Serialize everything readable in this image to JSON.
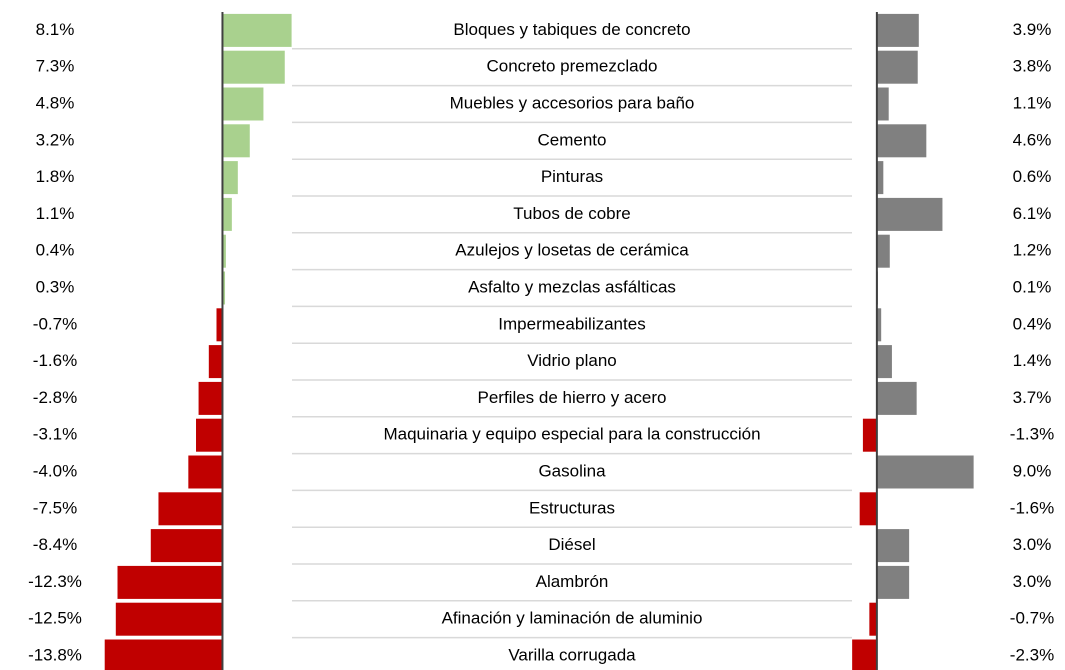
{
  "chart_data": {
    "type": "bar",
    "orientation": "horizontal",
    "categories": [
      "Bloques y tabiques de concreto",
      "Concreto premezclado",
      "Muebles y accesorios para baño",
      "Cemento",
      "Pinturas",
      "Tubos de cobre",
      "Azulejos y losetas de cerámica",
      "Asfalto y mezclas asfálticas",
      "Impermeabilizantes",
      "Vidrio plano",
      "Perfiles de hierro y acero",
      "Maquinaria y equipo especial para la construcción",
      "Gasolina",
      "Estructuras",
      "Diésel",
      "Alambrón",
      "Afinación y laminación de aluminio",
      "Varilla corrugada"
    ],
    "series": [
      {
        "color": "#a9d18e",
        "negative_color": "#c00000",
        "xlim": [
          -14,
          8.5
        ],
        "values": [
          8.1,
          7.3,
          4.8,
          3.2,
          1.8,
          1.1,
          0.4,
          0.3,
          -0.7,
          -1.6,
          -2.8,
          -3.1,
          -4.0,
          -7.5,
          -8.4,
          -12.3,
          -12.5,
          -13.8
        ],
        "value_labels": [
          "8.1%",
          "7.3%",
          "4.8%",
          "3.2%",
          "1.8%",
          "1.1%",
          "0.4%",
          "0.3%",
          "-0.7%",
          "-1.6%",
          "-2.8%",
          "-3.1%",
          "-4.0%",
          "-7.5%",
          "-8.4%",
          "-12.3%",
          "-12.5%",
          "-13.8%"
        ]
      },
      {
        "color": "#808080",
        "negative_color": "#c00000",
        "xlim": [
          -2.5,
          9.5
        ],
        "values": [
          3.9,
          3.8,
          1.1,
          4.6,
          0.6,
          6.1,
          1.2,
          0.1,
          0.4,
          1.4,
          3.7,
          -1.3,
          9.0,
          -1.6,
          3.0,
          3.0,
          -0.7,
          -2.3
        ],
        "value_labels": [
          "3.9%",
          "3.8%",
          "1.1%",
          "4.6%",
          "0.6%",
          "6.1%",
          "1.2%",
          "0.1%",
          "0.4%",
          "1.4%",
          "3.7%",
          "-1.3%",
          "9.0%",
          "-1.6%",
          "3.0%",
          "3.0%",
          "-0.7%",
          "-2.3%"
        ]
      }
    ]
  }
}
